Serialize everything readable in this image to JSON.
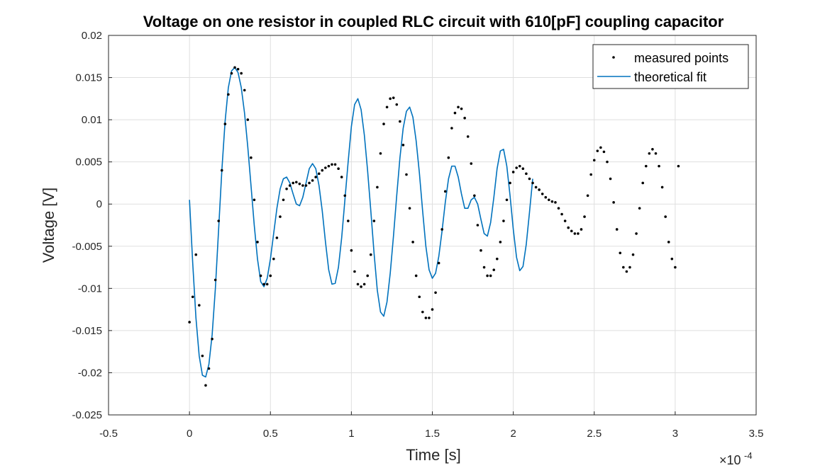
{
  "chart_data": {
    "type": "scatter",
    "title": "Voltage on one resistor in coupled RLC circuit with 610[pF] coupling capacitor",
    "xlabel": "Time [s]",
    "ylabel": "Voltage [V]",
    "x_exponent_base": "×10",
    "x_exponent_power": "-4",
    "xlim": [
      -0.5,
      3.5
    ],
    "ylim": [
      -0.025,
      0.02
    ],
    "x_ticks": [
      -0.5,
      0,
      0.5,
      1,
      1.5,
      2,
      2.5,
      3,
      3.5
    ],
    "x_tick_labels": [
      "-0.5",
      "0",
      "0.5",
      "1",
      "1.5",
      "2",
      "2.5",
      "3",
      "3.5"
    ],
    "y_ticks": [
      0.02,
      0.015,
      0.01,
      0.005,
      0,
      -0.005,
      -0.01,
      -0.015,
      -0.02,
      -0.025
    ],
    "y_tick_labels": [
      "0.02",
      "0.015",
      "0.01",
      "0.005",
      "0",
      "-0.005",
      "-0.01",
      "-0.015",
      "-0.02",
      "-0.025"
    ],
    "grid": true,
    "legend_position": "top-right",
    "series": [
      {
        "name": "measured points",
        "style": "markers",
        "color": "#000000",
        "points": [
          [
            0.0,
            -0.014
          ],
          [
            0.02,
            -0.011
          ],
          [
            0.04,
            -0.006
          ],
          [
            0.06,
            -0.012
          ],
          [
            0.08,
            -0.018
          ],
          [
            0.1,
            -0.0215
          ],
          [
            0.12,
            -0.0195
          ],
          [
            0.14,
            -0.016
          ],
          [
            0.16,
            -0.009
          ],
          [
            0.18,
            -0.002
          ],
          [
            0.2,
            0.004
          ],
          [
            0.22,
            0.0095
          ],
          [
            0.24,
            0.013
          ],
          [
            0.26,
            0.0155
          ],
          [
            0.28,
            0.0162
          ],
          [
            0.3,
            0.016
          ],
          [
            0.32,
            0.0155
          ],
          [
            0.34,
            0.0135
          ],
          [
            0.36,
            0.01
          ],
          [
            0.38,
            0.0055
          ],
          [
            0.4,
            0.0005
          ],
          [
            0.42,
            -0.0045
          ],
          [
            0.44,
            -0.0085
          ],
          [
            0.46,
            -0.0095
          ],
          [
            0.48,
            -0.0095
          ],
          [
            0.5,
            -0.0085
          ],
          [
            0.52,
            -0.0065
          ],
          [
            0.54,
            -0.004
          ],
          [
            0.56,
            -0.0015
          ],
          [
            0.58,
            0.0005
          ],
          [
            0.6,
            0.0018
          ],
          [
            0.62,
            0.0022
          ],
          [
            0.64,
            0.0025
          ],
          [
            0.66,
            0.0026
          ],
          [
            0.68,
            0.0024
          ],
          [
            0.7,
            0.0022
          ],
          [
            0.72,
            0.0022
          ],
          [
            0.74,
            0.0025
          ],
          [
            0.76,
            0.0028
          ],
          [
            0.78,
            0.0032
          ],
          [
            0.8,
            0.0036
          ],
          [
            0.82,
            0.004
          ],
          [
            0.84,
            0.0043
          ],
          [
            0.86,
            0.0045
          ],
          [
            0.88,
            0.0047
          ],
          [
            0.9,
            0.0047
          ],
          [
            0.92,
            0.0042
          ],
          [
            0.94,
            0.0032
          ],
          [
            0.96,
            0.001
          ],
          [
            0.98,
            -0.002
          ],
          [
            1.0,
            -0.0055
          ],
          [
            1.02,
            -0.008
          ],
          [
            1.04,
            -0.0095
          ],
          [
            1.06,
            -0.0098
          ],
          [
            1.08,
            -0.0095
          ],
          [
            1.1,
            -0.0085
          ],
          [
            1.12,
            -0.006
          ],
          [
            1.14,
            -0.002
          ],
          [
            1.16,
            0.002
          ],
          [
            1.18,
            0.006
          ],
          [
            1.2,
            0.0095
          ],
          [
            1.22,
            0.0115
          ],
          [
            1.24,
            0.0125
          ],
          [
            1.26,
            0.0126
          ],
          [
            1.28,
            0.0118
          ],
          [
            1.3,
            0.0098
          ],
          [
            1.32,
            0.007
          ],
          [
            1.34,
            0.0035
          ],
          [
            1.36,
            -0.0005
          ],
          [
            1.38,
            -0.0045
          ],
          [
            1.4,
            -0.0085
          ],
          [
            1.42,
            -0.011
          ],
          [
            1.44,
            -0.0128
          ],
          [
            1.46,
            -0.0135
          ],
          [
            1.48,
            -0.0135
          ],
          [
            1.5,
            -0.0125
          ],
          [
            1.52,
            -0.0105
          ],
          [
            1.54,
            -0.007
          ],
          [
            1.56,
            -0.003
          ],
          [
            1.58,
            0.0015
          ],
          [
            1.6,
            0.0055
          ],
          [
            1.62,
            0.009
          ],
          [
            1.64,
            0.0108
          ],
          [
            1.66,
            0.0115
          ],
          [
            1.68,
            0.0113
          ],
          [
            1.7,
            0.0102
          ],
          [
            1.72,
            0.008
          ],
          [
            1.74,
            0.0048
          ],
          [
            1.76,
            0.001
          ],
          [
            1.78,
            -0.0025
          ],
          [
            1.8,
            -0.0055
          ],
          [
            1.82,
            -0.0075
          ],
          [
            1.84,
            -0.0085
          ],
          [
            1.86,
            -0.0085
          ],
          [
            1.88,
            -0.0078
          ],
          [
            1.9,
            -0.0065
          ],
          [
            1.92,
            -0.0045
          ],
          [
            1.94,
            -0.002
          ],
          [
            1.96,
            0.0005
          ],
          [
            1.98,
            0.0025
          ],
          [
            2.0,
            0.0038
          ],
          [
            2.02,
            0.0043
          ],
          [
            2.04,
            0.0045
          ],
          [
            2.06,
            0.0042
          ],
          [
            2.08,
            0.0036
          ],
          [
            2.1,
            0.003
          ],
          [
            2.12,
            0.0025
          ],
          [
            2.14,
            0.002
          ],
          [
            2.16,
            0.0017
          ],
          [
            2.18,
            0.0012
          ],
          [
            2.2,
            0.0008
          ],
          [
            2.22,
            0.0005
          ],
          [
            2.24,
            0.0003
          ],
          [
            2.26,
            0.0002
          ],
          [
            2.28,
            -0.0005
          ],
          [
            2.3,
            -0.0012
          ],
          [
            2.32,
            -0.002
          ],
          [
            2.34,
            -0.0028
          ],
          [
            2.36,
            -0.0032
          ],
          [
            2.38,
            -0.0035
          ],
          [
            2.4,
            -0.0035
          ],
          [
            2.42,
            -0.003
          ],
          [
            2.44,
            -0.0015
          ],
          [
            2.46,
            0.001
          ],
          [
            2.48,
            0.0035
          ],
          [
            2.5,
            0.0052
          ],
          [
            2.52,
            0.0063
          ],
          [
            2.54,
            0.0067
          ],
          [
            2.56,
            0.0062
          ],
          [
            2.58,
            0.005
          ],
          [
            2.6,
            0.003
          ],
          [
            2.62,
            0.0002
          ],
          [
            2.64,
            -0.003
          ],
          [
            2.66,
            -0.0058
          ],
          [
            2.68,
            -0.0075
          ],
          [
            2.7,
            -0.008
          ],
          [
            2.72,
            -0.0075
          ],
          [
            2.74,
            -0.006
          ],
          [
            2.76,
            -0.0035
          ],
          [
            2.78,
            -0.0005
          ],
          [
            2.8,
            0.0025
          ],
          [
            2.82,
            0.0045
          ],
          [
            2.84,
            0.006
          ],
          [
            2.86,
            0.0065
          ],
          [
            2.88,
            0.006
          ],
          [
            2.9,
            0.0045
          ],
          [
            2.92,
            0.002
          ],
          [
            2.94,
            -0.0015
          ],
          [
            2.96,
            -0.0045
          ],
          [
            2.98,
            -0.0065
          ],
          [
            3.0,
            -0.0075
          ],
          [
            3.02,
            0.0045
          ]
        ]
      },
      {
        "name": "theoretical fit",
        "style": "line",
        "color": "#0072BD",
        "points": [
          [
            0.0,
            0.0005
          ],
          [
            0.02,
            -0.007
          ],
          [
            0.04,
            -0.0135
          ],
          [
            0.06,
            -0.018
          ],
          [
            0.08,
            -0.0203
          ],
          [
            0.1,
            -0.0205
          ],
          [
            0.12,
            -0.019
          ],
          [
            0.14,
            -0.0155
          ],
          [
            0.16,
            -0.01
          ],
          [
            0.18,
            -0.003
          ],
          [
            0.2,
            0.004
          ],
          [
            0.22,
            0.0098
          ],
          [
            0.24,
            0.0138
          ],
          [
            0.26,
            0.0158
          ],
          [
            0.28,
            0.0162
          ],
          [
            0.3,
            0.0156
          ],
          [
            0.32,
            0.0138
          ],
          [
            0.34,
            0.0108
          ],
          [
            0.36,
            0.0068
          ],
          [
            0.38,
            0.0022
          ],
          [
            0.4,
            -0.0025
          ],
          [
            0.42,
            -0.0065
          ],
          [
            0.44,
            -0.0092
          ],
          [
            0.46,
            -0.0098
          ],
          [
            0.48,
            -0.0088
          ],
          [
            0.5,
            -0.0065
          ],
          [
            0.52,
            -0.0035
          ],
          [
            0.54,
            -0.0005
          ],
          [
            0.56,
            0.0018
          ],
          [
            0.58,
            0.003
          ],
          [
            0.6,
            0.0032
          ],
          [
            0.62,
            0.0025
          ],
          [
            0.64,
            0.0012
          ],
          [
            0.66,
            0.0
          ],
          [
            0.68,
            -0.0002
          ],
          [
            0.7,
            0.0008
          ],
          [
            0.72,
            0.0025
          ],
          [
            0.74,
            0.0042
          ],
          [
            0.76,
            0.0048
          ],
          [
            0.78,
            0.0042
          ],
          [
            0.8,
            0.0022
          ],
          [
            0.82,
            -0.0008
          ],
          [
            0.84,
            -0.0045
          ],
          [
            0.86,
            -0.0078
          ],
          [
            0.88,
            -0.0095
          ],
          [
            0.9,
            -0.0094
          ],
          [
            0.92,
            -0.0075
          ],
          [
            0.94,
            -0.004
          ],
          [
            0.96,
            0.0005
          ],
          [
            0.98,
            0.005
          ],
          [
            1.0,
            0.0092
          ],
          [
            1.02,
            0.0118
          ],
          [
            1.04,
            0.0125
          ],
          [
            1.06,
            0.0112
          ],
          [
            1.08,
            0.0082
          ],
          [
            1.1,
            0.004
          ],
          [
            1.12,
            -0.0008
          ],
          [
            1.14,
            -0.0058
          ],
          [
            1.16,
            -0.0102
          ],
          [
            1.18,
            -0.0128
          ],
          [
            1.2,
            -0.0133
          ],
          [
            1.22,
            -0.0116
          ],
          [
            1.24,
            -0.0082
          ],
          [
            1.26,
            -0.0038
          ],
          [
            1.28,
            0.001
          ],
          [
            1.3,
            0.0055
          ],
          [
            1.32,
            0.009
          ],
          [
            1.34,
            0.011
          ],
          [
            1.36,
            0.0115
          ],
          [
            1.38,
            0.0103
          ],
          [
            1.4,
            0.0075
          ],
          [
            1.42,
            0.0037
          ],
          [
            1.44,
            -0.0008
          ],
          [
            1.46,
            -0.005
          ],
          [
            1.48,
            -0.0078
          ],
          [
            1.5,
            -0.0088
          ],
          [
            1.52,
            -0.0082
          ],
          [
            1.54,
            -0.0062
          ],
          [
            1.56,
            -0.0032
          ],
          [
            1.58,
            0.0002
          ],
          [
            1.6,
            0.003
          ],
          [
            1.62,
            0.0045
          ],
          [
            1.64,
            0.0045
          ],
          [
            1.66,
            0.0032
          ],
          [
            1.68,
            0.0012
          ],
          [
            1.7,
            -0.0005
          ],
          [
            1.72,
            -0.0005
          ],
          [
            1.74,
            0.0005
          ],
          [
            1.76,
            0.0008
          ],
          [
            1.78,
            0.0
          ],
          [
            1.8,
            -0.0018
          ],
          [
            1.82,
            -0.0035
          ],
          [
            1.84,
            -0.0038
          ],
          [
            1.86,
            -0.0022
          ],
          [
            1.88,
            0.0008
          ],
          [
            1.9,
            0.0042
          ],
          [
            1.92,
            0.0063
          ],
          [
            1.94,
            0.0065
          ],
          [
            1.96,
            0.0045
          ],
          [
            1.98,
            0.001
          ],
          [
            2.0,
            -0.003
          ],
          [
            2.02,
            -0.0063
          ],
          [
            2.04,
            -0.0079
          ],
          [
            2.06,
            -0.0074
          ],
          [
            2.08,
            -0.0048
          ],
          [
            2.1,
            -0.001
          ],
          [
            2.12,
            0.003
          ]
        ]
      }
    ]
  }
}
